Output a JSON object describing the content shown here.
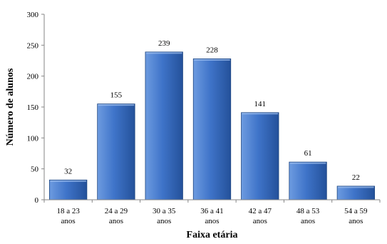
{
  "chart_data": {
    "type": "bar",
    "categories": [
      [
        "18 a 23",
        "anos"
      ],
      [
        "24 a 29",
        "anos"
      ],
      [
        "30 a 35",
        "anos"
      ],
      [
        "36 a 41",
        "anos"
      ],
      [
        "42 a 47",
        "anos"
      ],
      [
        "48 a 53",
        "anos"
      ],
      [
        "54 a 59",
        "anos"
      ]
    ],
    "values": [
      32,
      155,
      239,
      228,
      141,
      61,
      22
    ],
    "data_labels": [
      "32",
      "155",
      "239",
      "228",
      "141",
      "61",
      "22"
    ],
    "y_ticks": [
      0,
      50,
      100,
      150,
      200,
      250,
      300
    ],
    "ylim": [
      0,
      300
    ],
    "title": "",
    "xlabel": "Faixa etária",
    "ylabel": "Número de alunos",
    "grid": false,
    "legend": "none",
    "colors": {
      "bar_top": "#6d9be0",
      "bar_mid": "#3f74c9",
      "bar_bottom": "#24519a",
      "bar_edge": "#1d4580",
      "axis": "#868686"
    }
  }
}
